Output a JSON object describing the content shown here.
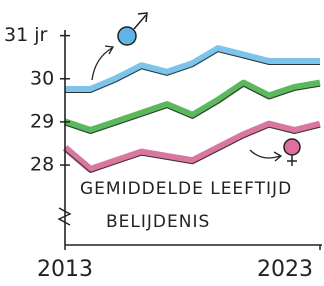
{
  "chart_data": {
    "type": "line",
    "annotation": [
      "GEMIDDELDE LEEFTIJD",
      "BELIJDENIS"
    ],
    "x": [
      2013,
      2014,
      2015,
      2016,
      2017,
      2018,
      2019,
      2020,
      2021,
      2022,
      2023
    ],
    "xlim": [
      2013,
      2023
    ],
    "xticks": [
      2013,
      2023
    ],
    "ylim": [
      26.1,
      31.2
    ],
    "yticks": [
      28,
      29,
      30,
      {
        "value": 31,
        "label": "31 jr"
      }
    ],
    "series": [
      {
        "color": "#7cc4ea",
        "values": [
          29.75,
          29.75,
          30.0,
          30.3,
          30.15,
          30.35,
          30.7,
          30.55,
          30.4,
          30.4,
          30.4
        ]
      },
      {
        "color": "#5cb85c",
        "values": [
          29.0,
          28.8,
          29.0,
          29.2,
          29.4,
          29.15,
          29.5,
          29.9,
          29.6,
          29.8,
          29.9
        ]
      },
      {
        "color": "#d9779f",
        "values": [
          28.4,
          27.9,
          28.1,
          28.3,
          28.2,
          28.1,
          28.4,
          28.7,
          28.95,
          28.8,
          28.95
        ]
      }
    ]
  }
}
